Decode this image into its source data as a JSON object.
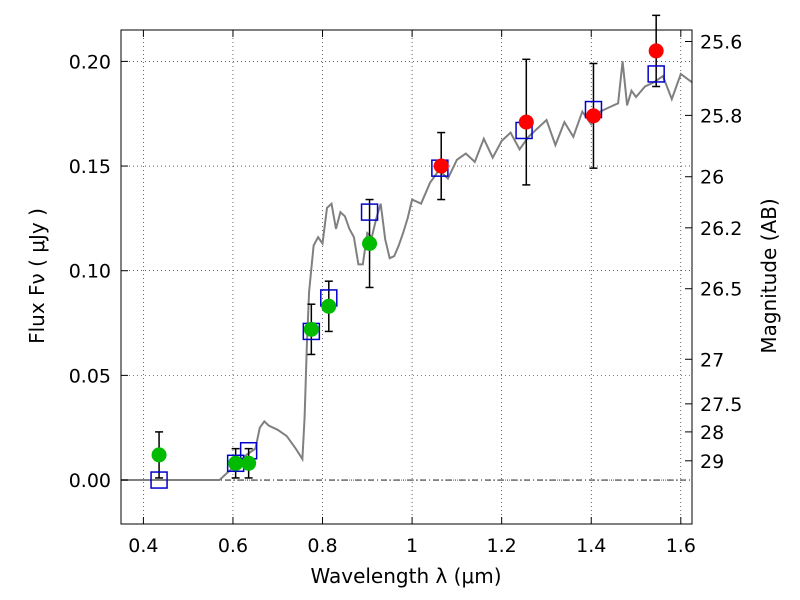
{
  "chart_data": {
    "type": "scatter",
    "xlabel": "Wavelength  λ (μm)",
    "ylabel": "Flux  Fν  ( μJy )",
    "y2label": "Magnitude (AB)",
    "xlim": [
      0.35,
      1.625
    ],
    "ylim": [
      -0.021,
      0.215
    ],
    "grid": true,
    "x_ticks": [
      0.4,
      0.6,
      0.8,
      1.0,
      1.2,
      1.4,
      1.6
    ],
    "x_tick_labels": [
      "0.4",
      "0.6",
      "0.8",
      "1",
      "1.2",
      "1.4",
      "1.6"
    ],
    "y_ticks": [
      0.0,
      0.05,
      0.1,
      0.15,
      0.2
    ],
    "y_tick_labels": [
      "0.00",
      "0.05",
      "0.10",
      "0.15",
      "0.20"
    ],
    "y2_ticks": [
      {
        "label": "25.6",
        "flux": 0.2095
      },
      {
        "label": "25.8",
        "flux": 0.1742
      },
      {
        "label": "26",
        "flux": 0.1449
      },
      {
        "label": "26.2",
        "flux": 0.1205
      },
      {
        "label": "26.5",
        "flux": 0.0914
      },
      {
        "label": "27",
        "flux": 0.0577
      },
      {
        "label": "27.5",
        "flux": 0.0364
      },
      {
        "label": "28",
        "flux": 0.023
      },
      {
        "label": "29",
        "flux": 0.0092
      }
    ],
    "model_spectrum": {
      "color": "#808080",
      "x": [
        0.35,
        0.57,
        0.6,
        0.63,
        0.65,
        0.66,
        0.67,
        0.68,
        0.7,
        0.72,
        0.74,
        0.755,
        0.76,
        0.765,
        0.77,
        0.78,
        0.79,
        0.8,
        0.81,
        0.82,
        0.83,
        0.84,
        0.85,
        0.86,
        0.87,
        0.88,
        0.89,
        0.9,
        0.91,
        0.92,
        0.93,
        0.94,
        0.95,
        0.96,
        0.97,
        0.98,
        0.99,
        1.0,
        1.02,
        1.04,
        1.06,
        1.08,
        1.1,
        1.12,
        1.14,
        1.16,
        1.18,
        1.2,
        1.22,
        1.24,
        1.26,
        1.28,
        1.3,
        1.32,
        1.34,
        1.36,
        1.38,
        1.4,
        1.42,
        1.44,
        1.46,
        1.47,
        1.48,
        1.49,
        1.5,
        1.52,
        1.54,
        1.56,
        1.58,
        1.6,
        1.625
      ],
      "y": [
        0.0,
        0.0,
        0.006,
        0.012,
        0.015,
        0.025,
        0.028,
        0.026,
        0.024,
        0.021,
        0.015,
        0.01,
        0.03,
        0.065,
        0.09,
        0.112,
        0.116,
        0.113,
        0.13,
        0.132,
        0.12,
        0.128,
        0.126,
        0.12,
        0.116,
        0.103,
        0.103,
        0.118,
        0.116,
        0.125,
        0.132,
        0.115,
        0.106,
        0.107,
        0.112,
        0.118,
        0.125,
        0.134,
        0.132,
        0.142,
        0.148,
        0.144,
        0.153,
        0.156,
        0.152,
        0.163,
        0.154,
        0.162,
        0.166,
        0.158,
        0.164,
        0.168,
        0.172,
        0.16,
        0.171,
        0.164,
        0.176,
        0.17,
        0.176,
        0.178,
        0.18,
        0.2,
        0.179,
        0.186,
        0.183,
        0.188,
        0.19,
        0.193,
        0.182,
        0.194,
        0.19
      ]
    },
    "boxes": {
      "color": "#0000cc",
      "x": [
        0.435,
        0.606,
        0.635,
        0.775,
        0.814,
        0.905,
        1.062,
        1.25,
        1.405,
        1.545
      ],
      "y": [
        0.0,
        0.008,
        0.014,
        0.071,
        0.087,
        0.128,
        0.149,
        0.167,
        0.177,
        0.194
      ]
    },
    "points": [
      {
        "x": 0.435,
        "y": 0.012,
        "yerr_low": 0.011,
        "yerr_high": 0.011,
        "color": "#00bb00"
      },
      {
        "x": 0.606,
        "y": 0.008,
        "yerr_low": 0.007,
        "yerr_high": 0.007,
        "color": "#00bb00"
      },
      {
        "x": 0.635,
        "y": 0.008,
        "yerr_low": 0.007,
        "yerr_high": 0.007,
        "color": "#00bb00"
      },
      {
        "x": 0.775,
        "y": 0.072,
        "yerr_low": 0.012,
        "yerr_high": 0.012,
        "color": "#00bb00"
      },
      {
        "x": 0.814,
        "y": 0.083,
        "yerr_low": 0.012,
        "yerr_high": 0.012,
        "color": "#00bb00"
      },
      {
        "x": 0.905,
        "y": 0.113,
        "yerr_low": 0.021,
        "yerr_high": 0.021,
        "color": "#00bb00"
      },
      {
        "x": 1.065,
        "y": 0.15,
        "yerr_low": 0.016,
        "yerr_high": 0.016,
        "color": "#ff0000"
      },
      {
        "x": 1.255,
        "y": 0.171,
        "yerr_low": 0.03,
        "yerr_high": 0.03,
        "color": "#ff0000"
      },
      {
        "x": 1.405,
        "y": 0.174,
        "yerr_low": 0.025,
        "yerr_high": 0.025,
        "color": "#ff0000"
      },
      {
        "x": 1.545,
        "y": 0.205,
        "yerr_low": 0.017,
        "yerr_high": 0.017,
        "color": "#ff0000"
      }
    ]
  }
}
